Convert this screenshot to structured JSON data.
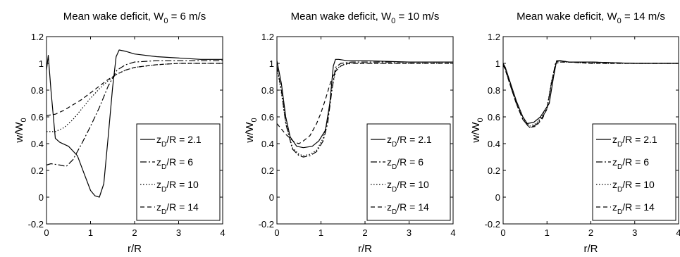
{
  "chart_data": [
    {
      "type": "line",
      "title": "Mean wake deficit, W",
      "title_sub": "0",
      "title_tail": " = 6 m/s",
      "xlabel": "r/R",
      "ylabel": "w/W",
      "ylabel_sub": "0",
      "xlim": [
        0,
        4
      ],
      "ylim": [
        -0.2,
        1.2
      ],
      "xticks": [
        "0",
        "1",
        "2",
        "3",
        "4"
      ],
      "yticks": [
        "-0.2",
        "0",
        "0.2",
        "0.4",
        "0.6",
        "0.8",
        "1",
        "1.2"
      ],
      "grid": false,
      "legend_position": "lower-right",
      "series": [
        {
          "name": "z_D/R = 2.1",
          "legend_main": "z",
          "legend_sub": "D",
          "legend_tail": "/R = 2.1",
          "style": "solid",
          "x": [
            0,
            0.04,
            0.1,
            0.2,
            0.3,
            0.5,
            0.7,
            0.85,
            1.0,
            1.1,
            1.2,
            1.3,
            1.4,
            1.5,
            1.58,
            1.65,
            1.8,
            2.0,
            2.5,
            3.0,
            3.5,
            4.0
          ],
          "y": [
            0.95,
            1.06,
            0.8,
            0.44,
            0.41,
            0.38,
            0.31,
            0.18,
            0.05,
            0.01,
            0.0,
            0.1,
            0.45,
            0.82,
            1.05,
            1.1,
            1.09,
            1.07,
            1.05,
            1.04,
            1.03,
            1.03
          ]
        },
        {
          "name": "z_D/R = 6",
          "legend_main": "z",
          "legend_sub": "D",
          "legend_tail": "/R = 6",
          "style": "dashdot",
          "x": [
            0,
            0.1,
            0.3,
            0.45,
            0.6,
            0.8,
            1.0,
            1.2,
            1.4,
            1.6,
            1.8,
            2.0,
            2.5,
            3.0,
            3.5,
            4.0
          ],
          "y": [
            0.24,
            0.25,
            0.24,
            0.23,
            0.28,
            0.4,
            0.53,
            0.67,
            0.83,
            0.95,
            0.99,
            1.01,
            1.02,
            1.02,
            1.02,
            1.02
          ]
        },
        {
          "name": "z_D/R = 10",
          "legend_main": "z",
          "legend_sub": "D",
          "legend_tail": "/R = 10",
          "style": "dotted",
          "x": [
            0,
            0.2,
            0.4,
            0.6,
            0.8,
            1.0,
            1.2,
            1.4,
            1.6,
            1.8,
            2.0,
            2.5,
            3.0,
            3.5,
            4.0
          ],
          "y": [
            0.49,
            0.49,
            0.52,
            0.58,
            0.66,
            0.74,
            0.81,
            0.87,
            0.92,
            0.95,
            0.97,
            0.99,
            1.0,
            1.0,
            1.0
          ]
        },
        {
          "name": "z_D/R = 14",
          "legend_main": "z",
          "legend_sub": "D",
          "legend_tail": "/R = 14",
          "style": "dashed",
          "x": [
            0,
            0.2,
            0.4,
            0.6,
            0.8,
            1.0,
            1.2,
            1.4,
            1.6,
            1.8,
            2.0,
            2.5,
            3.0,
            3.5,
            4.0
          ],
          "y": [
            0.61,
            0.62,
            0.65,
            0.69,
            0.73,
            0.78,
            0.83,
            0.88,
            0.92,
            0.95,
            0.97,
            0.99,
            1.0,
            1.0,
            1.0
          ]
        }
      ]
    },
    {
      "type": "line",
      "title": "Mean wake deficit, W",
      "title_sub": "0",
      "title_tail": " = 10 m/s",
      "xlabel": "r/R",
      "ylabel": "w/W",
      "ylabel_sub": "0",
      "xlim": [
        0,
        4
      ],
      "ylim": [
        -0.2,
        1.2
      ],
      "xticks": [
        "0",
        "1",
        "2",
        "3",
        "4"
      ],
      "yticks": [
        "-0.2",
        "0",
        "0.2",
        "0.4",
        "0.6",
        "0.8",
        "1",
        "1.2"
      ],
      "grid": false,
      "legend_position": "lower-right",
      "series": [
        {
          "name": "z_D/R = 2.1",
          "legend_main": "z",
          "legend_sub": "D",
          "legend_tail": "/R = 2.1",
          "style": "solid",
          "x": [
            0,
            0.1,
            0.2,
            0.3,
            0.45,
            0.6,
            0.8,
            0.95,
            1.1,
            1.2,
            1.28,
            1.33,
            1.4,
            1.6,
            2.0,
            3.0,
            4.0
          ],
          "y": [
            1.02,
            0.85,
            0.6,
            0.45,
            0.38,
            0.37,
            0.38,
            0.42,
            0.5,
            0.7,
            0.98,
            1.03,
            1.03,
            1.02,
            1.02,
            1.01,
            1.01
          ]
        },
        {
          "name": "z_D/R = 6",
          "legend_main": "z",
          "legend_sub": "D",
          "legend_tail": "/R = 6",
          "style": "dashdot",
          "x": [
            0,
            0.1,
            0.2,
            0.35,
            0.5,
            0.6,
            0.75,
            0.9,
            1.05,
            1.15,
            1.25,
            1.33,
            1.45,
            1.7,
            2.0,
            3.0,
            4.0
          ],
          "y": [
            0.98,
            0.8,
            0.55,
            0.36,
            0.31,
            0.3,
            0.31,
            0.34,
            0.42,
            0.55,
            0.8,
            0.97,
            1.0,
            1.01,
            1.01,
            1.01,
            1.01
          ]
        },
        {
          "name": "z_D/R = 10",
          "legend_main": "z",
          "legend_sub": "D",
          "legend_tail": "/R = 10",
          "style": "dotted",
          "x": [
            0,
            0.1,
            0.2,
            0.35,
            0.5,
            0.6,
            0.75,
            0.9,
            1.05,
            1.15,
            1.25,
            1.35,
            1.5,
            1.7,
            2.0,
            3.0,
            4.0
          ],
          "y": [
            0.97,
            0.78,
            0.56,
            0.37,
            0.32,
            0.31,
            0.32,
            0.35,
            0.44,
            0.58,
            0.82,
            0.96,
            0.99,
            1.0,
            1.0,
            1.0,
            1.0
          ]
        },
        {
          "name": "z_D/R = 14",
          "legend_main": "z",
          "legend_sub": "D",
          "legend_tail": "/R = 14",
          "style": "dashed",
          "x": [
            0,
            0.2,
            0.4,
            0.5,
            0.6,
            0.75,
            0.9,
            1.0,
            1.1,
            1.2,
            1.3,
            1.45,
            1.6,
            2.0,
            3.0,
            4.0
          ],
          "y": [
            0.55,
            0.47,
            0.41,
            0.4,
            0.42,
            0.46,
            0.55,
            0.63,
            0.73,
            0.84,
            0.93,
            0.98,
            1.0,
            1.0,
            1.0,
            1.0
          ]
        }
      ]
    },
    {
      "type": "line",
      "title": "Mean wake deficit, W",
      "title_sub": "0",
      "title_tail": " = 14 m/s",
      "xlabel": "r/R",
      "ylabel": "w/W",
      "ylabel_sub": "0",
      "xlim": [
        0,
        4
      ],
      "ylim": [
        -0.2,
        1.2
      ],
      "xticks": [
        "0",
        "1",
        "2",
        "3",
        "4"
      ],
      "yticks": [
        "-0.2",
        "0",
        "0.2",
        "0.4",
        "0.6",
        "0.8",
        "1",
        "1.2"
      ],
      "grid": false,
      "legend_position": "lower-right",
      "series": [
        {
          "name": "z_D/R = 2.1",
          "legend_main": "z",
          "legend_sub": "D",
          "legend_tail": "/R = 2.1",
          "style": "solid",
          "x": [
            0,
            0.05,
            0.15,
            0.3,
            0.45,
            0.55,
            0.7,
            0.85,
            0.95,
            1.05,
            1.15,
            1.22,
            1.3,
            1.5,
            2.0,
            3.0,
            4.0
          ],
          "y": [
            1.0,
            0.97,
            0.87,
            0.72,
            0.6,
            0.55,
            0.56,
            0.6,
            0.65,
            0.7,
            0.9,
            1.02,
            1.02,
            1.01,
            1.01,
            1.0,
            1.0
          ]
        },
        {
          "name": "z_D/R = 6",
          "legend_main": "z",
          "legend_sub": "D",
          "legend_tail": "/R = 6",
          "style": "dashdot",
          "x": [
            0,
            0.05,
            0.15,
            0.3,
            0.45,
            0.6,
            0.75,
            0.9,
            1.0,
            1.1,
            1.2,
            1.3,
            1.5,
            2.0,
            3.0,
            4.0
          ],
          "y": [
            0.99,
            0.96,
            0.85,
            0.7,
            0.58,
            0.52,
            0.54,
            0.6,
            0.66,
            0.85,
            1.01,
            1.02,
            1.01,
            1.01,
            1.0,
            1.0
          ]
        },
        {
          "name": "z_D/R = 10",
          "legend_main": "z",
          "legend_sub": "D",
          "legend_tail": "/R = 10",
          "style": "dotted",
          "x": [
            0,
            0.05,
            0.15,
            0.3,
            0.45,
            0.6,
            0.75,
            0.9,
            1.0,
            1.1,
            1.2,
            1.3,
            1.5,
            2.0,
            3.0,
            4.0
          ],
          "y": [
            0.99,
            0.96,
            0.86,
            0.71,
            0.59,
            0.53,
            0.55,
            0.61,
            0.67,
            0.86,
            1.0,
            1.01,
            1.01,
            1.0,
            1.0,
            1.0
          ]
        },
        {
          "name": "z_D/R = 14",
          "legend_main": "z",
          "legend_sub": "D",
          "legend_tail": "/R = 14",
          "style": "dashed",
          "x": [
            0,
            0.05,
            0.15,
            0.3,
            0.45,
            0.6,
            0.75,
            0.9,
            1.0,
            1.1,
            1.2,
            1.3,
            1.5,
            2.0,
            3.0,
            4.0
          ],
          "y": [
            0.99,
            0.95,
            0.85,
            0.7,
            0.58,
            0.52,
            0.53,
            0.59,
            0.66,
            0.85,
            1.0,
            1.01,
            1.01,
            1.0,
            1.0,
            1.0
          ]
        }
      ]
    }
  ]
}
